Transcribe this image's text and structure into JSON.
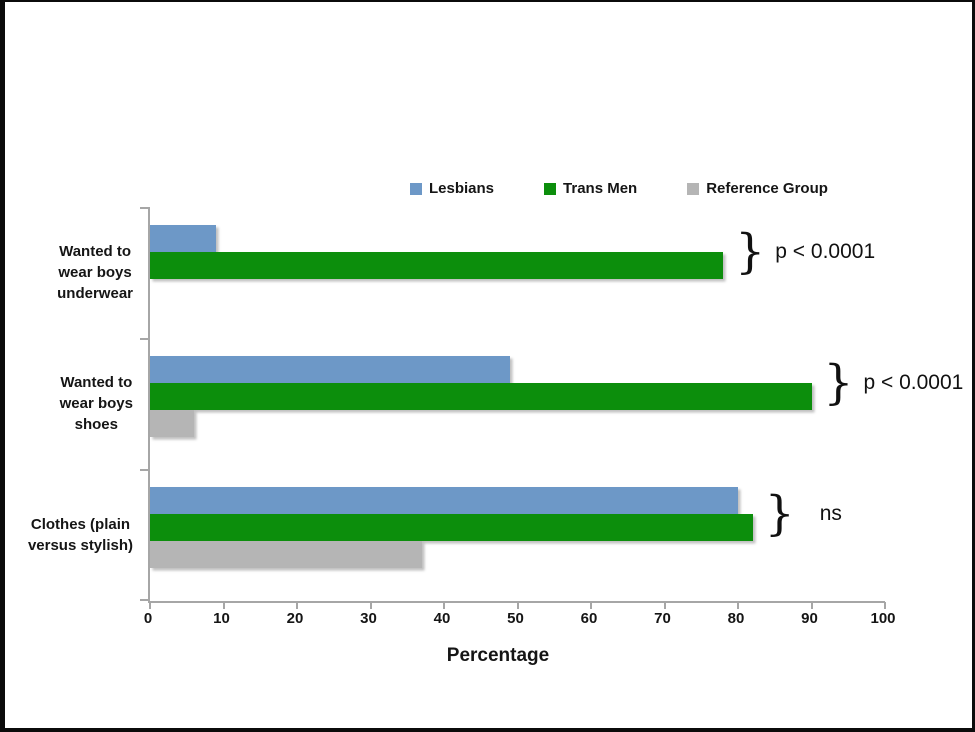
{
  "frame": {
    "background": "#ffffff",
    "border_color": "#0b0b0b"
  },
  "legend": {
    "items": [
      {
        "label": "Lesbians",
        "color": "#6D98C7"
      },
      {
        "label": "Trans Men",
        "color": "#0C8E0C"
      },
      {
        "label": "Reference Group",
        "color": "#B5B5B5"
      }
    ]
  },
  "chart_data": {
    "type": "bar",
    "orientation": "horizontal",
    "title": "",
    "categories": [
      "Wanted to wear boys underwear",
      "Wanted to wear boys shoes",
      "Clothes (plain versus stylish)"
    ],
    "category_label_lines": [
      [
        "Wanted to",
        "wear boys",
        "underwear"
      ],
      [
        "Wanted to",
        "wear boys",
        "shoes"
      ],
      [
        "Clothes (plain",
        "versus stylish)"
      ]
    ],
    "series": [
      {
        "name": "Lesbians",
        "color": "#6D98C7",
        "values": [
          9,
          49,
          80
        ]
      },
      {
        "name": "Trans Men",
        "color": "#0C8E0C",
        "values": [
          78,
          90,
          82
        ]
      },
      {
        "name": "Reference Group",
        "color": "#B5B5B5",
        "values": [
          0,
          6,
          37
        ]
      }
    ],
    "xlabel": "Percentage",
    "xlim": [
      0,
      100
    ],
    "xticks": [
      0,
      10,
      20,
      30,
      40,
      50,
      60,
      70,
      80,
      90,
      100
    ],
    "grid": false,
    "legend_position": "top",
    "axis_color": "#a6a6a6",
    "annotations": [
      {
        "category": "Wanted to wear boys underwear",
        "brace": "}",
        "text": "p < 0.0001"
      },
      {
        "category": "Wanted to wear boys shoes",
        "brace": "}",
        "text": "p < 0.0001"
      },
      {
        "category": "Clothes (plain versus stylish)",
        "brace": "}",
        "text": "ns"
      }
    ]
  }
}
